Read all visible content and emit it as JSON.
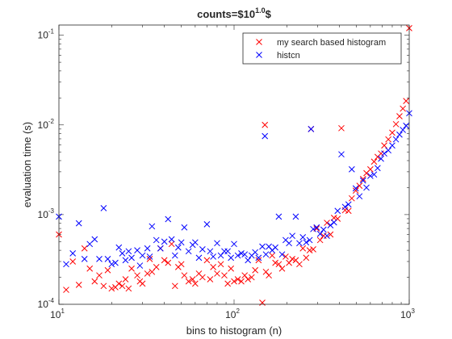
{
  "chart_data": {
    "type": "scatter",
    "title_main": "counts=$10",
    "title_sup": "1.0",
    "title_end": "$",
    "xlabel": "bins to histogram (n)",
    "ylabel": "evaluation time (s)",
    "xscale": "log",
    "yscale": "log",
    "xlim": [
      10,
      1000
    ],
    "ylim": [
      0.0001,
      0.13
    ],
    "x_tick_labels": [
      {
        "base": "10",
        "exp": "1"
      },
      {
        "base": "10",
        "exp": "2"
      },
      {
        "base": "10",
        "exp": "3"
      }
    ],
    "y_tick_labels": [
      {
        "base": "10",
        "exp": "-4"
      },
      {
        "base": "10",
        "exp": "-3"
      },
      {
        "base": "10",
        "exp": "-2"
      },
      {
        "base": "10",
        "exp": "-1"
      }
    ],
    "grid": false,
    "legend_position": "top-right",
    "marker": "x",
    "series": [
      {
        "name": "my search based histogram",
        "color": "#ff0000",
        "x": [
          10,
          11,
          12,
          13,
          14,
          15,
          16,
          17,
          18,
          19,
          20,
          21,
          22,
          23,
          24,
          25,
          26,
          28,
          29,
          30,
          32,
          33,
          34,
          36,
          38,
          40,
          42,
          44,
          46,
          48,
          50,
          52,
          55,
          58,
          60,
          63,
          66,
          70,
          73,
          76,
          80,
          84,
          88,
          92,
          96,
          100,
          105,
          110,
          115,
          120,
          126,
          132,
          138,
          145,
          150,
          152,
          158,
          165,
          172,
          180,
          188,
          197,
          206,
          215,
          225,
          236,
          247,
          258,
          270,
          275,
          283,
          296,
          310,
          324,
          339,
          355,
          372,
          390,
          410,
          430,
          450,
          470,
          495,
          520,
          545,
          570,
          600,
          630,
          660,
          690,
          720,
          760,
          800,
          840,
          880,
          920,
          960,
          1000
        ],
        "y": [
          0.0006,
          0.000145,
          0.0003,
          0.000165,
          0.00042,
          0.00025,
          0.00018,
          0.00021,
          0.00016,
          0.00024,
          0.00015,
          0.000155,
          0.00017,
          0.00016,
          0.00019,
          0.00015,
          0.00025,
          0.00021,
          0.00018,
          0.00017,
          0.00022,
          0.00032,
          0.00023,
          0.00026,
          0.00042,
          0.00031,
          0.00029,
          0.00047,
          0.00016,
          0.00026,
          0.00028,
          0.00021,
          0.00018,
          0.00019,
          0.00017,
          0.00022,
          0.0002,
          0.00031,
          0.00019,
          0.00026,
          0.00022,
          0.00028,
          0.00021,
          0.00017,
          0.00025,
          0.00018,
          0.00019,
          0.00018,
          0.00021,
          0.00019,
          0.0002,
          0.00024,
          0.00031,
          0.0001,
          0.01,
          0.00023,
          0.00021,
          0.00035,
          0.00029,
          0.00028,
          0.00025,
          0.00034,
          0.00029,
          0.00032,
          0.00031,
          0.00028,
          0.00042,
          0.00033,
          0.0004,
          0.009,
          0.00041,
          0.0007,
          0.00052,
          0.00058,
          0.00081,
          0.0006,
          0.00092,
          0.0009,
          0.0092,
          0.00112,
          0.0011,
          0.00152,
          0.00185,
          0.0021,
          0.0025,
          0.0029,
          0.0032,
          0.0039,
          0.0044,
          0.0048,
          0.0059,
          0.0069,
          0.0082,
          0.0102,
          0.0125,
          0.0152,
          0.0185,
          0.12
        ]
      },
      {
        "name": "histcn",
        "color": "#0000ff",
        "x": [
          10,
          11,
          12,
          13,
          14,
          15,
          16,
          17,
          18,
          19,
          20,
          21,
          22,
          23,
          24,
          25,
          26,
          28,
          29,
          30,
          32,
          33,
          34,
          36,
          38,
          40,
          42,
          44,
          46,
          48,
          50,
          52,
          55,
          58,
          60,
          63,
          66,
          70,
          73,
          76,
          80,
          84,
          88,
          92,
          96,
          100,
          105,
          110,
          115,
          120,
          126,
          132,
          138,
          145,
          150,
          152,
          158,
          165,
          172,
          180,
          188,
          197,
          206,
          215,
          225,
          236,
          247,
          258,
          270,
          275,
          283,
          296,
          310,
          324,
          339,
          355,
          372,
          390,
          410,
          430,
          450,
          470,
          495,
          520,
          545,
          570,
          600,
          630,
          660,
          690,
          720,
          760,
          800,
          840,
          880,
          920,
          960,
          1000
        ],
        "y": [
          0.00095,
          0.00028,
          0.00037,
          0.0008,
          0.00032,
          0.00047,
          0.00053,
          0.00032,
          0.00118,
          0.00032,
          0.00028,
          0.00029,
          0.00043,
          0.00037,
          0.00031,
          0.00039,
          0.00033,
          0.0004,
          0.00027,
          0.00035,
          0.00042,
          0.00034,
          0.00074,
          0.00052,
          0.00042,
          0.0005,
          0.00089,
          0.00053,
          0.00035,
          0.00043,
          0.00049,
          0.00072,
          0.00039,
          0.00046,
          0.00049,
          0.00033,
          0.00041,
          0.00078,
          0.00039,
          0.00034,
          0.00048,
          0.00035,
          0.00039,
          0.00039,
          0.00033,
          0.00047,
          0.00035,
          0.00037,
          0.00036,
          0.00031,
          0.00035,
          0.00038,
          0.00033,
          0.00044,
          0.0075,
          0.00036,
          0.00044,
          0.0004,
          0.00043,
          0.00095,
          0.00036,
          0.00052,
          0.00048,
          0.00058,
          0.00095,
          0.00048,
          0.00056,
          0.00049,
          0.00052,
          0.009,
          0.00069,
          0.00072,
          0.00061,
          0.00068,
          0.00058,
          0.00076,
          0.00082,
          0.0011,
          0.0047,
          0.00122,
          0.0013,
          0.0032,
          0.00196,
          0.0016,
          0.0024,
          0.002,
          0.0027,
          0.0028,
          0.0033,
          0.0042,
          0.0048,
          0.0052,
          0.0059,
          0.0069,
          0.0078,
          0.0088,
          0.0098,
          0.0135
        ]
      }
    ]
  }
}
